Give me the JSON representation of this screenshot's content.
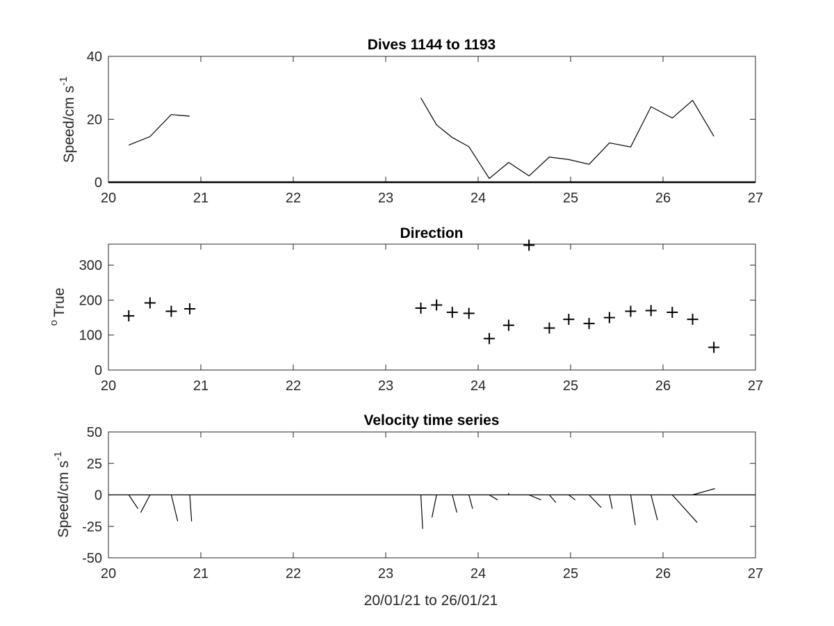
{
  "chart_data": [
    {
      "type": "line",
      "title": "Dives 1144 to 1193",
      "ylabel": "Speed/cm s",
      "ylabel_sup": "-1",
      "xlim": [
        20,
        27
      ],
      "ylim": [
        0,
        40
      ],
      "xticks": [
        20,
        21,
        22,
        23,
        24,
        25,
        26,
        27
      ],
      "yticks": [
        0,
        20,
        40
      ],
      "grid": false,
      "series": [
        {
          "x": [
            20.22,
            20.45,
            20.68,
            20.88
          ],
          "y": [
            11.8,
            14.5,
            21.5,
            21.0
          ]
        },
        {
          "x": [
            23.38,
            23.55,
            23.72,
            23.9,
            24.12,
            24.33,
            24.55,
            24.77,
            24.98,
            25.2,
            25.42,
            25.65,
            25.87,
            26.1,
            26.32,
            26.55
          ],
          "y": [
            26.8,
            18.2,
            14.2,
            11.3,
            1.2,
            6.3,
            2.0,
            8.0,
            7.2,
            5.7,
            12.5,
            11.2,
            24.0,
            20.4,
            26.0,
            14.6
          ]
        }
      ],
      "baseline": 0
    },
    {
      "type": "scatter",
      "title": "Direction",
      "ylabel": "True",
      "ylabel_sup": "o",
      "marker": "+",
      "xlim": [
        20,
        27
      ],
      "ylim": [
        0,
        360
      ],
      "xticks": [
        20,
        21,
        22,
        23,
        24,
        25,
        26,
        27
      ],
      "yticks": [
        0,
        100,
        200,
        300
      ],
      "grid": false,
      "x": [
        20.22,
        20.45,
        20.68,
        20.88,
        23.38,
        23.55,
        23.72,
        23.9,
        24.12,
        24.33,
        24.55,
        24.77,
        24.98,
        25.2,
        25.42,
        25.65,
        25.87,
        26.1,
        26.32,
        26.55
      ],
      "y": [
        155,
        192,
        168,
        175,
        177,
        186,
        165,
        162,
        90,
        128,
        357,
        120,
        145,
        133,
        150,
        168,
        170,
        165,
        145,
        65
      ]
    },
    {
      "type": "line",
      "subtype": "stick",
      "title": "Velocity time series",
      "ylabel": "Speed/cm s",
      "ylabel_sup": "-1",
      "xlabel": "20/01/21 to 26/01/21",
      "xlim": [
        20,
        27
      ],
      "ylim": [
        -50,
        50
      ],
      "xticks": [
        20,
        21,
        22,
        23,
        24,
        25,
        26,
        27
      ],
      "yticks": [
        -50,
        -25,
        0,
        25,
        50
      ],
      "grid": false,
      "baseline": 0,
      "sticks": [
        {
          "x": 20.22,
          "u": 0.1,
          "v": -11.0
        },
        {
          "x": 20.45,
          "u": -0.1,
          "v": -14.0
        },
        {
          "x": 20.68,
          "u": 0.07,
          "v": -21.0
        },
        {
          "x": 20.88,
          "u": 0.02,
          "v": -21.0
        },
        {
          "x": 23.38,
          "u": 0.02,
          "v": -27.0
        },
        {
          "x": 23.55,
          "u": -0.05,
          "v": -18.0
        },
        {
          "x": 23.72,
          "u": 0.05,
          "v": -14.0
        },
        {
          "x": 23.9,
          "u": 0.04,
          "v": -11.0
        },
        {
          "x": 24.12,
          "u": 0.09,
          "v": -4.0
        },
        {
          "x": 24.33,
          "u": 0.0,
          "v": 1.5
        },
        {
          "x": 24.55,
          "u": 0.13,
          "v": -4.0
        },
        {
          "x": 24.77,
          "u": 0.07,
          "v": -6.0
        },
        {
          "x": 24.98,
          "u": 0.07,
          "v": -4.0
        },
        {
          "x": 25.2,
          "u": 0.13,
          "v": -10.0
        },
        {
          "x": 25.42,
          "u": 0.03,
          "v": -11.0
        },
        {
          "x": 25.65,
          "u": 0.05,
          "v": -24.0
        },
        {
          "x": 25.87,
          "u": 0.07,
          "v": -20.0
        },
        {
          "x": 26.1,
          "u": 0.27,
          "v": -22.0
        },
        {
          "x": 26.32,
          "u": 0.24,
          "v": 5.0
        }
      ]
    }
  ]
}
